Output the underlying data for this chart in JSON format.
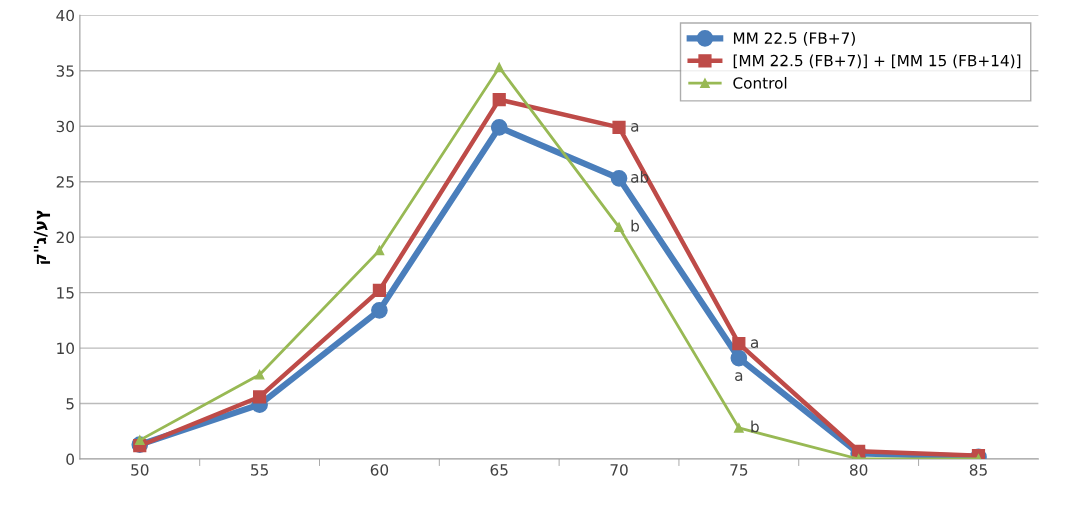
{
  "chart_data": {
    "type": "line",
    "ylabel": "ק\"ג/עץ",
    "categories": [
      "50",
      "55",
      "60",
      "65",
      "70",
      "75",
      "80",
      "85"
    ],
    "series": [
      {
        "name": "MM 22.5 (FB+7)",
        "color": "#4a7ebb",
        "marker": "circle",
        "values": [
          1.3,
          4.9,
          13.4,
          29.9,
          25.3,
          9.1,
          0.5,
          0.2
        ]
      },
      {
        "name": "[MM 22.5 (FB+7)] + [MM 15 (FB+14)]",
        "color": "#be4b48",
        "marker": "square",
        "values": [
          1.2,
          5.6,
          15.2,
          32.4,
          29.9,
          10.4,
          0.7,
          0.3
        ]
      },
      {
        "name": "Control",
        "color": "#98b954",
        "marker": "triangle",
        "values": [
          1.7,
          7.6,
          18.8,
          35.3,
          20.9,
          2.8,
          0.0,
          0.0
        ]
      }
    ],
    "ylim": [
      0,
      40
    ],
    "yticks": [
      0,
      5,
      10,
      15,
      20,
      25,
      30,
      35,
      40
    ],
    "grid": "y",
    "legend": "top right",
    "annotations": [
      {
        "text": "a",
        "x": "70",
        "y": 29.9
      },
      {
        "text": "ab",
        "x": "70",
        "y": 25.3
      },
      {
        "text": "b",
        "x": "70",
        "y": 20.9
      },
      {
        "text": "a",
        "x": "75",
        "y": 10.4
      },
      {
        "text": "a",
        "x": "75",
        "y": 9.1
      },
      {
        "text": "b",
        "x": "75",
        "y": 2.8
      }
    ]
  }
}
